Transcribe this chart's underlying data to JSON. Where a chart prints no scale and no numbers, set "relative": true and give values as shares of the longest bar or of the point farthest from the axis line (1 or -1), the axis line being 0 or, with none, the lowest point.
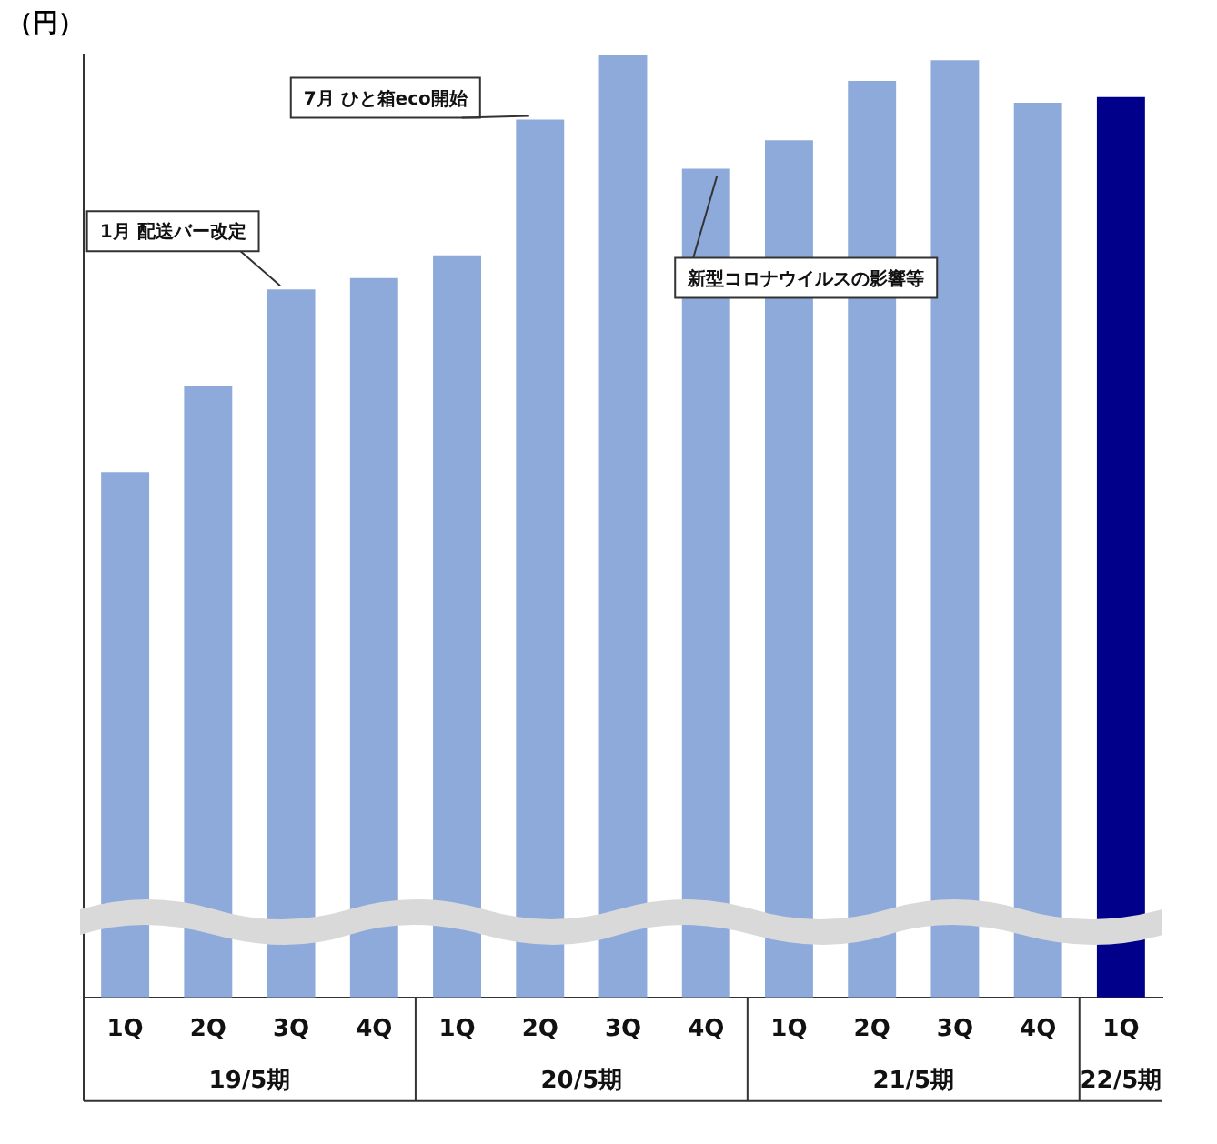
{
  "chart_data": {
    "type": "bar",
    "relative": true,
    "ylabel": "（円）",
    "categories": [
      "1Q",
      "2Q",
      "3Q",
      "4Q",
      "1Q",
      "2Q",
      "3Q",
      "4Q",
      "1Q",
      "2Q",
      "3Q",
      "4Q",
      "1Q"
    ],
    "values": [
      0.557,
      0.648,
      0.751,
      0.763,
      0.787,
      0.931,
      1,
      0.879,
      0.909,
      0.972,
      0.994,
      0.949,
      0.955
    ],
    "colors": [
      "#8eaadb",
      "#8eaadb",
      "#8eaadb",
      "#8eaadb",
      "#8eaadb",
      "#8eaadb",
      "#8eaadb",
      "#8eaadb",
      "#8eaadb",
      "#8eaadb",
      "#8eaadb",
      "#8eaadb",
      "#00008b"
    ],
    "annotations": [
      "19/5期",
      "20/5期",
      "21/5期",
      "22/5期",
      "1月 配送バー改定",
      "7月 ひと箱eco開始",
      "新型コロナウイルスの影響等"
    ],
    "grid": false,
    "legend": false
  }
}
